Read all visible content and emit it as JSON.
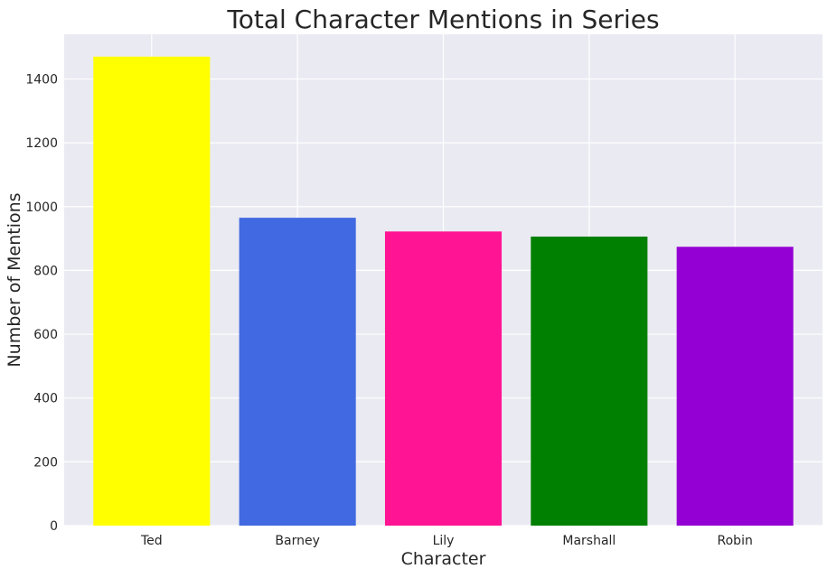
{
  "chart_data": {
    "type": "bar",
    "title": "Total Character Mentions in Series",
    "xlabel": "Character",
    "ylabel": "Number of Mentions",
    "categories": [
      "Ted",
      "Barney",
      "Lily",
      "Marshall",
      "Robin"
    ],
    "values": [
      1470,
      965,
      922,
      906,
      874
    ],
    "colors": [
      "#ffff00",
      "#4169e1",
      "#ff1493",
      "#008000",
      "#9400d3"
    ],
    "ylim": [
      0,
      1540
    ],
    "yticks": [
      0,
      200,
      400,
      600,
      800,
      1000,
      1200,
      1400
    ],
    "grid": true,
    "plot_background": "#eaeaf2",
    "grid_color": "#ffffff",
    "legend": "none"
  }
}
